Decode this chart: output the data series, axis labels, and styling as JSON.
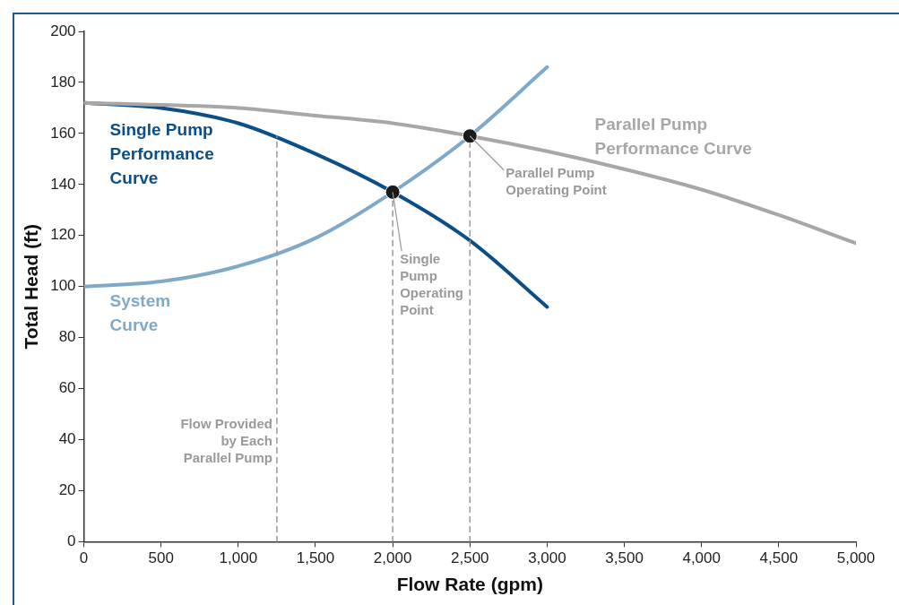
{
  "chart_data": {
    "type": "line",
    "xlabel": "Flow Rate (gpm)",
    "ylabel": "Total Head (ft)",
    "xlim": [
      0,
      5000
    ],
    "ylim": [
      0,
      200
    ],
    "xticks": [
      0,
      500,
      {
        "value": 1000,
        "label": "1,000"
      },
      {
        "value": 1500,
        "label": "1,500"
      },
      {
        "value": 2000,
        "label": "2,000"
      },
      {
        "value": 2500,
        "label": "2,500"
      },
      {
        "value": 3000,
        "label": "3,000"
      },
      {
        "value": 3500,
        "label": "3,500"
      },
      {
        "value": 4000,
        "label": "4,000"
      },
      {
        "value": 4500,
        "label": "4,500"
      },
      {
        "value": 5000,
        "label": "5,000"
      }
    ],
    "yticks": [
      0,
      20,
      40,
      60,
      80,
      100,
      120,
      140,
      160,
      180,
      200
    ],
    "grid": false,
    "legend": false,
    "marker": "none",
    "line_style": "solid",
    "series": [
      {
        "name": "Single Pump Performance Curve",
        "color": "#0b4f86",
        "x": [
          0,
          500,
          1000,
          1500,
          2000,
          2500,
          3000
        ],
        "values": [
          172,
          170,
          164,
          152,
          137,
          118,
          92
        ]
      },
      {
        "name": "System Curve",
        "color": "#7fa9c9",
        "x": [
          0,
          500,
          1000,
          1500,
          2000,
          2500,
          3000
        ],
        "values": [
          100,
          102,
          108,
          119,
          137,
          159,
          186
        ]
      },
      {
        "name": "Parallel Pump Performance Curve",
        "color": "#a7a7aa",
        "x": [
          0,
          1000,
          1500,
          2000,
          2500,
          3000,
          3500,
          4000,
          4500,
          5000
        ],
        "values": [
          172,
          170,
          167,
          164,
          159,
          153,
          146,
          138,
          128,
          117
        ]
      },
      {
        "line_style": "dashed",
        "color": "#999999",
        "x": [
          1250,
          1250
        ],
        "values": [
          0,
          159
        ]
      },
      {
        "line_style": "dashed",
        "color": "#999999",
        "x": [
          2000,
          2000
        ],
        "values": [
          0,
          137
        ]
      },
      {
        "line_style": "dashed",
        "color": "#999999",
        "x": [
          2500,
          2500
        ],
        "values": [
          0,
          159
        ]
      },
      {
        "type": "scatter",
        "marker": "circle",
        "color": "#1a1a1a",
        "x": [
          2000,
          2500
        ],
        "values": [
          137,
          159
        ]
      }
    ],
    "annotations": [
      {
        "text": "Flow Provided by Each Parallel Pump",
        "x": 1250,
        "y": 50
      },
      {
        "text": "Single Pump Operating Point",
        "x": 2000,
        "y": 137
      },
      {
        "text": "Parallel Pump Operating Point",
        "x": 2500,
        "y": 159
      }
    ]
  }
}
